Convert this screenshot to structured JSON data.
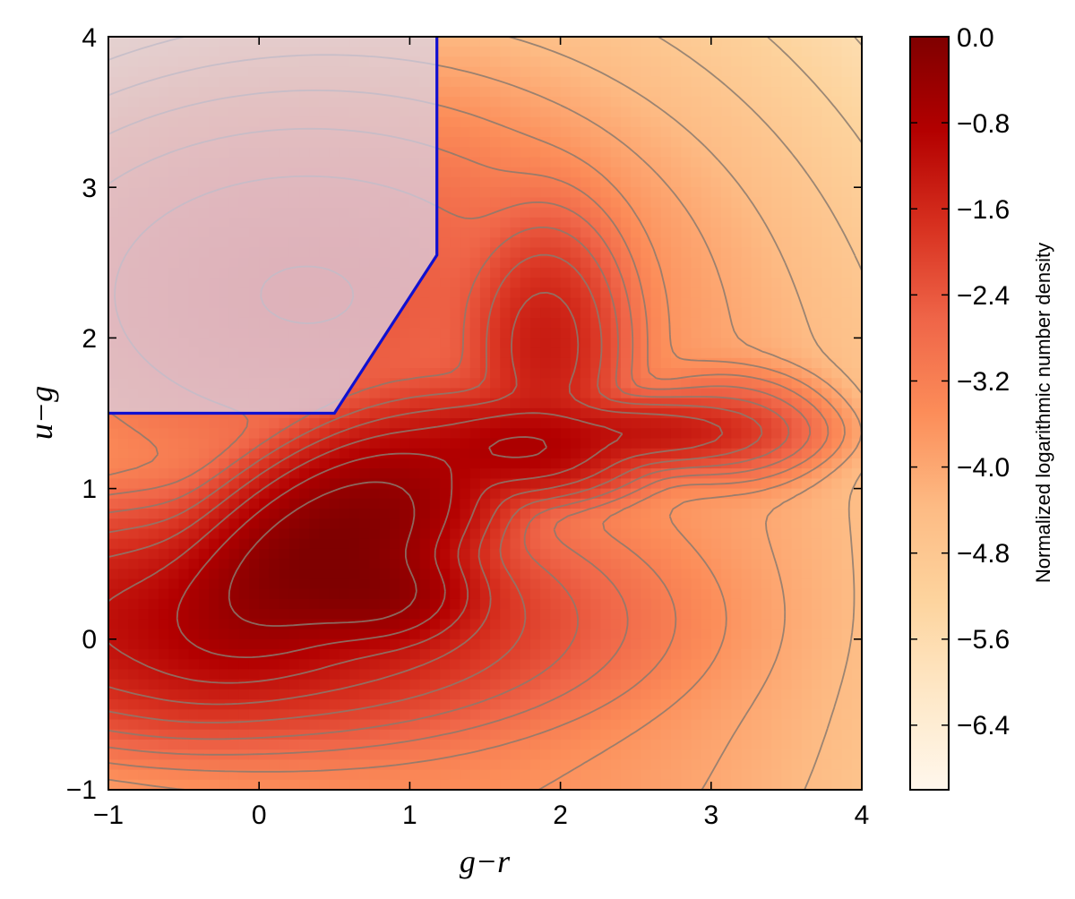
{
  "chart_data": {
    "type": "heatmap",
    "title": "",
    "xlabel": "g−r",
    "ylabel": "u−g",
    "xlim": [
      -1,
      4
    ],
    "ylim": [
      -1,
      4
    ],
    "xticks": [
      -1,
      0,
      1,
      2,
      3,
      4
    ],
    "yticks": [
      -1,
      0,
      1,
      2,
      3,
      4
    ],
    "xtick_labels": [
      "−1",
      "0",
      "1",
      "2",
      "3",
      "4"
    ],
    "ytick_labels": [
      "−1",
      "0",
      "1",
      "2",
      "3",
      "4"
    ],
    "grid": false,
    "colormap": "OrRd",
    "colorbar": {
      "label": "Normalized logarithmic number density",
      "range": [
        -7.0,
        0.0
      ],
      "ticks": [
        0.0,
        -0.8,
        -1.6,
        -2.4,
        -3.2,
        -4.0,
        -4.8,
        -5.6,
        -6.4
      ],
      "tick_labels": [
        "0.0",
        "−0.8",
        "−1.6",
        "−2.4",
        "−3.2",
        "−4.0",
        "−4.8",
        "−5.6",
        "−6.4"
      ],
      "position": "right"
    },
    "density_peaks": [
      {
        "x": 0.45,
        "y": 0.7,
        "value": 0.0
      },
      {
        "x": 0.7,
        "y": 0.3,
        "value": -0.3
      },
      {
        "x": 1.8,
        "y": 1.25,
        "value": -2.2
      }
    ],
    "selection_region": {
      "fill": "#d9d5ea",
      "edge": "#1010d0",
      "boundary": [
        {
          "x": -1.0,
          "y": 1.5
        },
        {
          "x": 0.5,
          "y": 1.5
        },
        {
          "x": 1.18,
          "y": 2.55
        },
        {
          "x": 1.18,
          "y": 4.0
        }
      ]
    },
    "contour_levels": [
      -6.8,
      -6.4,
      -6.0,
      -5.6,
      -5.2,
      -4.8,
      -4.4,
      -4.0,
      -3.6,
      -3.2,
      -2.8,
      -2.4,
      -2.0,
      -1.6,
      -1.2,
      -0.8,
      -0.4
    ],
    "contour_color": "#8a7a6f"
  }
}
